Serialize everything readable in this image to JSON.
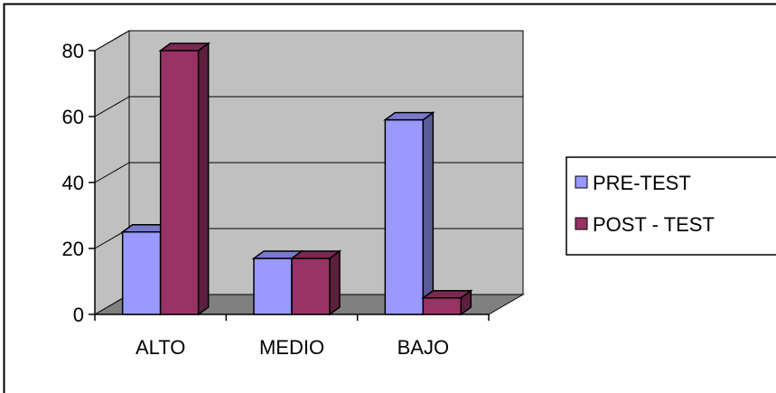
{
  "chart_data": {
    "type": "bar",
    "style": "3d-clustered-column",
    "categories": [
      "ALTO",
      "MEDIO",
      "BAJO"
    ],
    "series": [
      {
        "name": "PRE-TEST",
        "values": [
          25,
          17,
          59
        ],
        "color": "#9999ff",
        "side_color": "#5c5c99",
        "top_color": "#7a7acc"
      },
      {
        "name": "POST - TEST",
        "values": [
          80,
          17,
          5
        ],
        "color": "#993366",
        "side_color": "#5c1f3d",
        "top_color": "#7a2952"
      }
    ],
    "yticks": [
      0,
      20,
      40,
      60,
      80
    ],
    "ylim": [
      0,
      80
    ],
    "grid": true,
    "legend_position": "right",
    "wall_color": "#c0c0c0",
    "floor_color": "#808080",
    "title": "",
    "xlabel": "",
    "ylabel": ""
  }
}
